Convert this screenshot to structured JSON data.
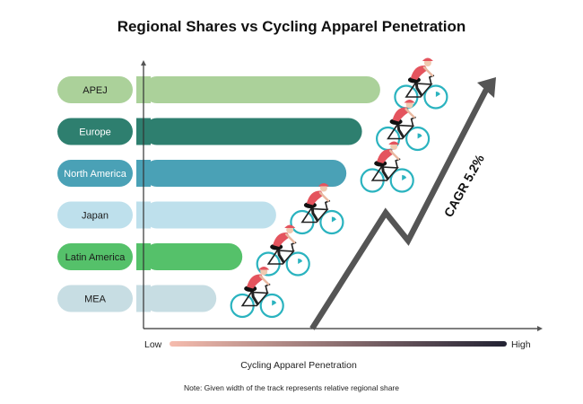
{
  "chart_data": {
    "type": "bar",
    "orientation": "horizontal",
    "title": "Regional Shares vs Cycling Apparel Penetration",
    "categories": [
      "APEJ",
      "Europe",
      "North America",
      "Japan",
      "Latin America",
      "MEA"
    ],
    "values": [
      0.91,
      0.84,
      0.78,
      0.51,
      0.38,
      0.28
    ],
    "ylim": [
      0,
      1
    ],
    "xlabel": "Cycling Apparel Penetration",
    "scale_low_label": "Low",
    "scale_high_label": "High",
    "note": "Note: Given width of the track represents relative regional share",
    "annotation": "CAGR 5.2%",
    "colors": {
      "bars": [
        "#abd19a",
        "#2e7f6f",
        "#4aa1b6",
        "#bee0ec",
        "#55c16a",
        "#c7dde3"
      ],
      "labels": [
        "#abd19a",
        "#2e7f6f",
        "#4aa1b6",
        "#bee0ec",
        "#55c16a",
        "#c7dde3"
      ],
      "label_text": [
        "#1a1a1a",
        "#ffffff",
        "#ffffff",
        "#1a1a1a",
        "#1a1a1a",
        "#1a1a1a"
      ],
      "arrow": "#555555",
      "gradient_start": "#f6bcae",
      "gradient_end": "#222233",
      "cyclist_jersey": "#e4545e",
      "cyclist_wheel": "#2ab3bf"
    },
    "grid": false
  }
}
